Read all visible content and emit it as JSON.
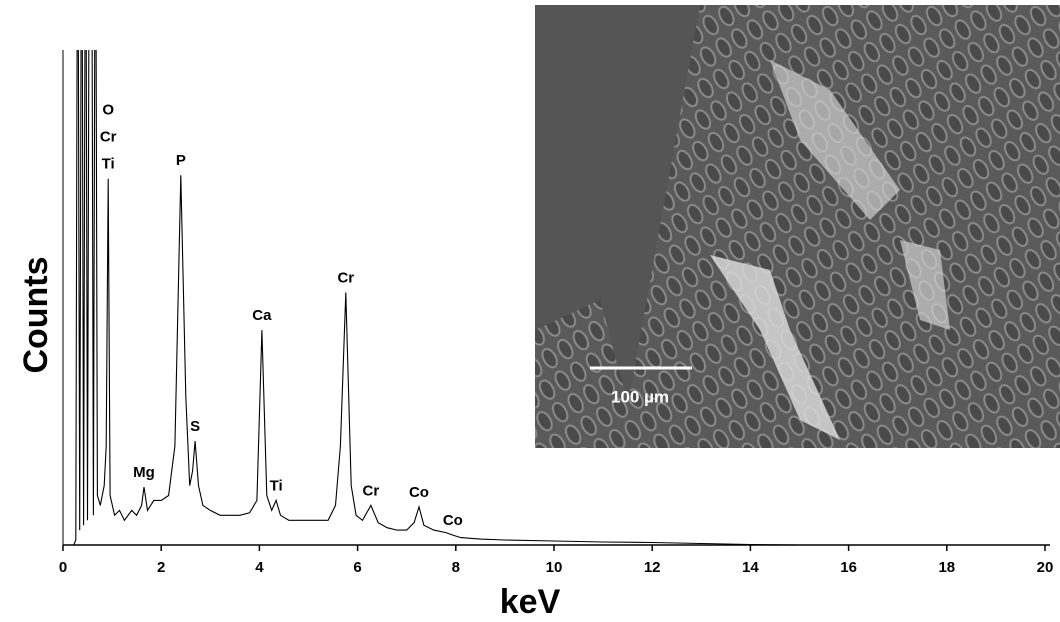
{
  "chart_data": {
    "type": "line",
    "x_label": "keV",
    "y_label": "Counts",
    "xlim": [
      0,
      20
    ],
    "xticks": [
      0,
      2,
      4,
      6,
      8,
      10,
      12,
      14,
      16,
      18,
      20
    ],
    "ylim": [
      0,
      100
    ],
    "series": [
      {
        "color": "#000000",
        "x": [
          0,
          0.22,
          0.26,
          0.3,
          0.34,
          0.38,
          0.42,
          0.46,
          0.5,
          0.54,
          0.58,
          0.62,
          0.66,
          0.7,
          0.76,
          0.84,
          0.88,
          0.92,
          0.96,
          1.05,
          1.15,
          1.25,
          1.4,
          1.5,
          1.6,
          1.65,
          1.72,
          1.85,
          2.0,
          2.15,
          2.28,
          2.4,
          2.5,
          2.58,
          2.64,
          2.69,
          2.76,
          2.85,
          3.0,
          3.2,
          3.4,
          3.6,
          3.8,
          3.95,
          4.05,
          4.15,
          4.25,
          4.34,
          4.43,
          4.6,
          4.8,
          5.0,
          5.2,
          5.4,
          5.55,
          5.65,
          5.76,
          5.87,
          5.97,
          6.1,
          6.27,
          6.42,
          6.6,
          6.8,
          7.0,
          7.15,
          7.25,
          7.35,
          7.55,
          7.8,
          7.94,
          8.1,
          8.5,
          9,
          10,
          11,
          12,
          13,
          14,
          15,
          16,
          18,
          20
        ],
        "values": [
          0,
          0,
          1,
          150,
          3,
          150,
          4,
          150,
          5,
          150,
          150,
          6,
          150,
          10,
          8,
          12,
          20,
          74,
          10,
          6,
          7,
          5,
          7,
          6,
          8,
          11.7,
          7,
          9,
          9,
          10,
          20,
          74.7,
          30,
          12,
          15,
          21,
          12,
          8,
          7,
          6,
          6,
          6,
          6.5,
          9,
          43.4,
          10,
          7,
          9,
          6,
          5,
          5,
          5,
          5,
          5,
          8,
          20,
          51,
          12,
          6,
          5,
          8,
          4.5,
          3.5,
          3,
          3,
          4.5,
          7.7,
          4,
          3,
          2.5,
          2,
          1.5,
          1.2,
          1,
          0.8,
          0.6,
          0.5,
          0.3,
          0.1,
          0,
          0,
          0,
          0
        ]
      }
    ],
    "annotations": [
      {
        "label": [
          "O",
          "Cr",
          "Ti"
        ],
        "x": 0.92
      },
      {
        "label": [
          "Mg"
        ],
        "x": 1.65
      },
      {
        "label": [
          "P"
        ],
        "x": 2.4
      },
      {
        "label": [
          "S"
        ],
        "x": 2.69
      },
      {
        "label": [
          "Ca"
        ],
        "x": 4.05
      },
      {
        "label": [
          "Ti"
        ],
        "x": 4.34
      },
      {
        "label": [
          "Cr"
        ],
        "x": 5.76
      },
      {
        "label": [
          "Cr"
        ],
        "x": 6.27
      },
      {
        "label": [
          "Co"
        ],
        "x": 7.25
      },
      {
        "label": [
          "Co"
        ],
        "x": 7.94
      }
    ],
    "inset": {
      "scale_bar": "100 µm"
    }
  }
}
